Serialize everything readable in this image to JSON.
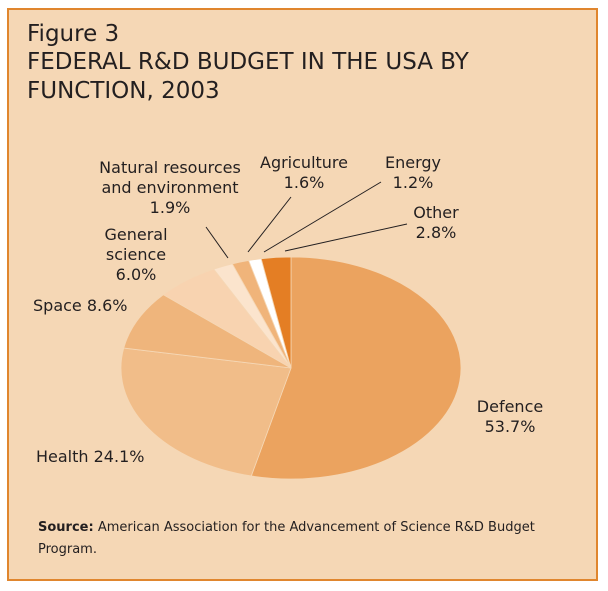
{
  "figure_label": "Figure 3",
  "chart_data": {
    "type": "pie",
    "title": "FEDERAL R&D BUDGET IN THE USA BY FUNCTION, 2003",
    "slices": [
      {
        "label": "Defence",
        "value": 53.7,
        "value_label": "53.7%",
        "color": "#eba35f"
      },
      {
        "label": "Health",
        "value": 24.1,
        "value_label": "24.1%",
        "color": "#f1bd89"
      },
      {
        "label": "Space",
        "value": 8.6,
        "value_label": "8.6%",
        "color": "#efb57c"
      },
      {
        "label": "General science",
        "value": 6.0,
        "value_label": "6.0%",
        "color": "#f8d3b0"
      },
      {
        "label": "Natural resources and environment",
        "value": 1.9,
        "value_label": "1.9%",
        "color": "#fbe4cd"
      },
      {
        "label": "Agriculture",
        "value": 1.6,
        "value_label": "1.6%",
        "color": "#f0b47a"
      },
      {
        "label": "Energy",
        "value": 1.2,
        "value_label": "1.2%",
        "color": "#ffffff"
      },
      {
        "label": "Other",
        "value": 2.8,
        "value_label": "2.8%",
        "color": "#e47e24"
      }
    ]
  },
  "labels": {
    "defence": "Defence\n53.7%",
    "health": "Health 24.1%",
    "space": "Space 8.6%",
    "general_science": "General\nscience\n6.0%",
    "natural_resources": "Natural resources\nand environment\n1.9%",
    "agriculture": "Agriculture\n1.6%",
    "energy": "Energy\n1.2%",
    "other": "Other\n2.8%"
  },
  "source": {
    "prefix": "Source:",
    "text": " American Association for the Advancement of Science R&D Budget Program."
  }
}
